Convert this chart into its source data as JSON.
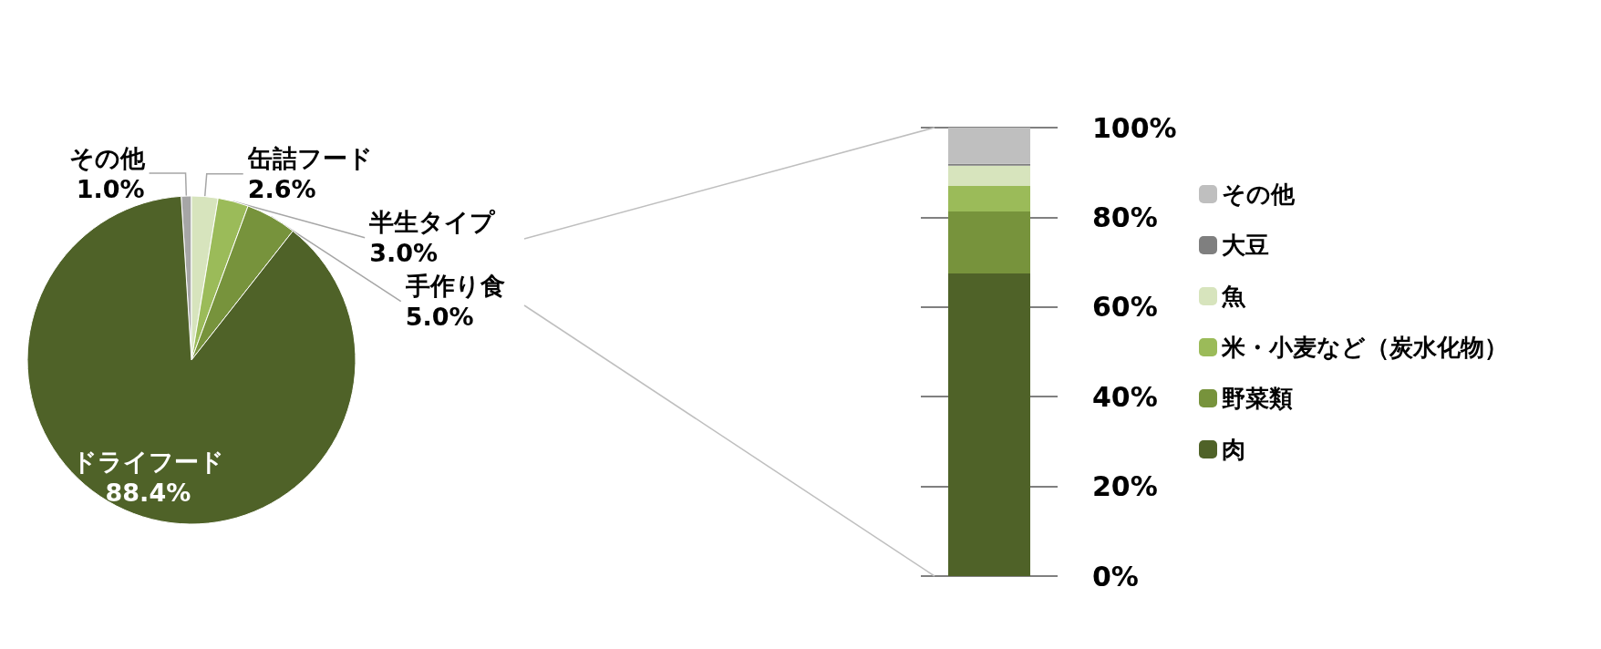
{
  "chart_data": [
    {
      "type": "pie",
      "categories": [
        "その他",
        "缶詰フード",
        "半生タイプ",
        "手作り食",
        "ドライフード"
      ],
      "values": [
        1.0,
        2.6,
        3.0,
        5.0,
        88.4
      ],
      "colors": [
        "#a6a6a6",
        "#d7e4bd",
        "#9bbb59",
        "#77933c",
        "#4f6228"
      ],
      "value_labels": [
        "1.0%",
        "2.6%",
        "3.0%",
        "5.0%",
        "88.4%"
      ],
      "legend": false
    },
    {
      "type": "bar",
      "stacked": true,
      "categories": [
        null
      ],
      "series": [
        {
          "name": "肉",
          "color": "#4f6228",
          "values": [
            67.5
          ]
        },
        {
          "name": "野菜類",
          "color": "#77933c",
          "values": [
            13.8
          ]
        },
        {
          "name": "米・小麦など（炭水化物）",
          "color": "#9bbb59",
          "values": [
            5.7
          ]
        },
        {
          "name": "魚",
          "color": "#d7e4bd",
          "values": [
            4.5
          ]
        },
        {
          "name": "大豆",
          "color": "#7f7f7f",
          "values": [
            0.4
          ]
        },
        {
          "name": "その他",
          "color": "#bfbfbf",
          "values": [
            8.1
          ]
        }
      ],
      "ylim": [
        0,
        100
      ],
      "yticks": [
        {
          "value": 0,
          "label": "0%"
        },
        {
          "value": 20,
          "label": "20%"
        },
        {
          "value": 40,
          "label": "40%"
        },
        {
          "value": 60,
          "label": "60%"
        },
        {
          "value": 80,
          "label": "80%"
        },
        {
          "value": 100,
          "label": "100%"
        }
      ],
      "grid": "y",
      "legend": "right"
    }
  ]
}
